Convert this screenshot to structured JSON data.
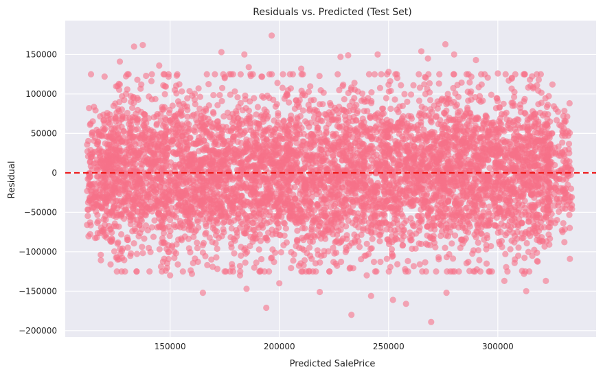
{
  "chart_data": {
    "type": "scatter",
    "title": "Residuals vs. Predicted (Test Set)",
    "xlabel": "Predicted SalePrice",
    "ylabel": "Residual",
    "xlim": [
      102000,
      345000
    ],
    "ylim": [
      -208000,
      193000
    ],
    "xticks": [
      150000,
      200000,
      250000,
      300000
    ],
    "yticks": [
      -200000,
      -150000,
      -100000,
      -50000,
      0,
      50000,
      100000,
      150000
    ],
    "grid": true,
    "reference_line": {
      "y": 0,
      "style": "dashed",
      "color": "#ee1111"
    },
    "point_color": "#f77189",
    "point_opacity": 0.6,
    "background_color": "#eaeaf2",
    "n_points": 6000,
    "x_range": [
      112000,
      334000
    ],
    "y_std": 52000,
    "points": [
      [
        133500,
        160000
      ],
      [
        137500,
        162000
      ],
      [
        139000,
        123000
      ],
      [
        173500,
        153000
      ],
      [
        196500,
        174000
      ],
      [
        145000,
        136000
      ],
      [
        127000,
        141000
      ],
      [
        184000,
        150000
      ],
      [
        245000,
        150000
      ],
      [
        265000,
        154000
      ],
      [
        276000,
        163000
      ],
      [
        228000,
        147000
      ],
      [
        290000,
        143000
      ],
      [
        120000,
        122000
      ],
      [
        305000,
        117000
      ],
      [
        325000,
        112000
      ],
      [
        231500,
        149000
      ],
      [
        268000,
        145000
      ],
      [
        186000,
        134000
      ],
      [
        280000,
        150000
      ],
      [
        165000,
        -152000
      ],
      [
        182000,
        -130000
      ],
      [
        194000,
        -171000
      ],
      [
        218500,
        -151000
      ],
      [
        233000,
        -180000
      ],
      [
        252000,
        -161000
      ],
      [
        258000,
        -166000
      ],
      [
        269500,
        -189000
      ],
      [
        276500,
        -152000
      ],
      [
        185000,
        -147000
      ],
      [
        200000,
        -140000
      ],
      [
        313000,
        -150000
      ],
      [
        312000,
        -128000
      ],
      [
        322000,
        -137000
      ],
      [
        303000,
        -137000
      ],
      [
        150000,
        -130000
      ],
      [
        148000,
        -124000
      ],
      [
        113000,
        -35000
      ],
      [
        333000,
        -109000
      ],
      [
        330000,
        72000
      ],
      [
        331000,
        13000
      ],
      [
        126000,
        -110000
      ],
      [
        120000,
        -80000
      ],
      [
        240000,
        -130000
      ],
      [
        242000,
        -156000
      ],
      [
        292000,
        -125000
      ],
      [
        160000,
        -128000
      ],
      [
        128000,
        97000
      ],
      [
        135000,
        118000
      ],
      [
        175000,
        120000
      ],
      [
        210000,
        132000
      ],
      [
        250000,
        128000
      ],
      [
        300000,
        126000
      ],
      [
        315000,
        110000
      ]
    ]
  }
}
